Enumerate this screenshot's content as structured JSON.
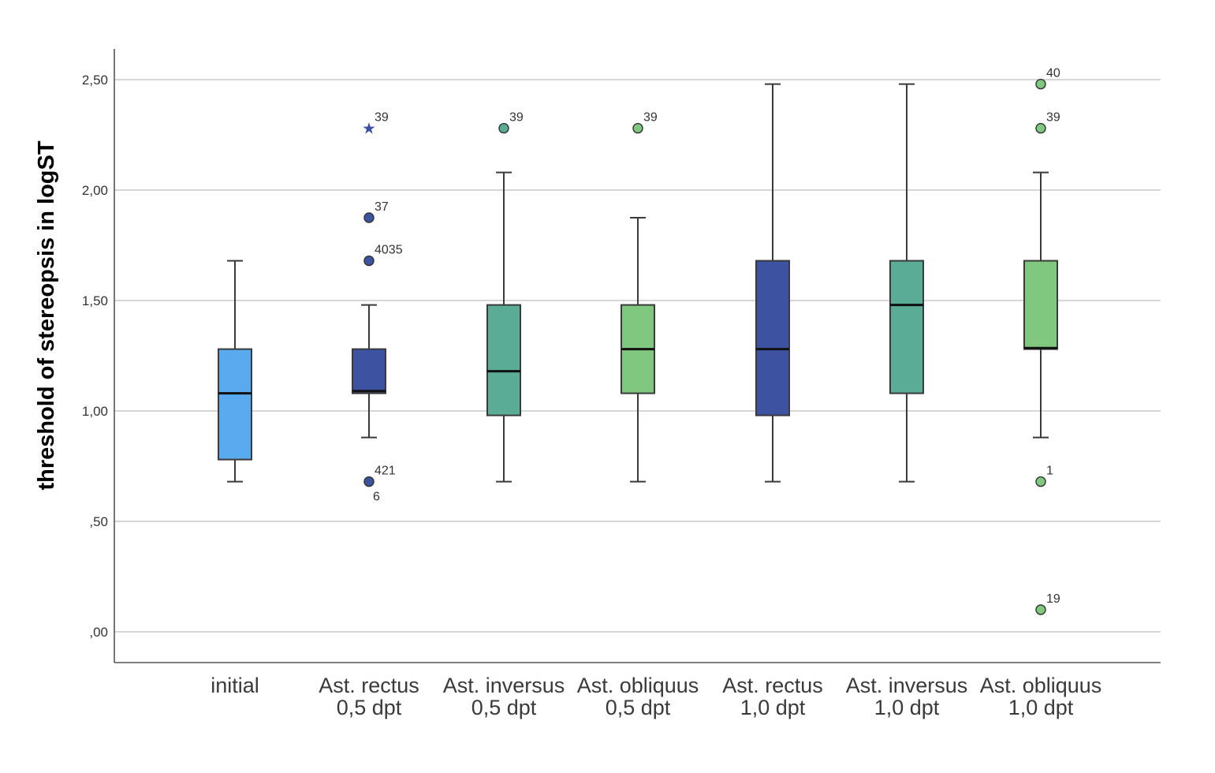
{
  "chart_data": {
    "type": "boxplot",
    "ylabel": "threshold of stereopsis in logST",
    "xlabel": "",
    "ylim": [
      -0.13,
      2.65
    ],
    "yticks": [
      0,
      0.5,
      1.0,
      1.5,
      2.0,
      2.5
    ],
    "ytick_labels": [
      ",00",
      ",50",
      "1,00",
      "1,50",
      "2,00",
      "2,50"
    ],
    "grid": true,
    "categories": [
      {
        "line1": "initial",
        "line2": ""
      },
      {
        "line1": "Ast. rectus",
        "line2": "0,5 dpt"
      },
      {
        "line1": "Ast. inversus",
        "line2": "0,5 dpt"
      },
      {
        "line1": "Ast. obliquus",
        "line2": "0,5 dpt"
      },
      {
        "line1": "Ast. rectus",
        "line2": "1,0 dpt"
      },
      {
        "line1": "Ast. inversus",
        "line2": "1,0 dpt"
      },
      {
        "line1": "Ast. obliquus",
        "line2": "1,0 dpt"
      }
    ],
    "boxes": [
      {
        "whisker_low": 0.68,
        "q1": 0.78,
        "median": 1.08,
        "q3": 1.28,
        "whisker_high": 1.68,
        "color": "#5aaaf0",
        "outliers": []
      },
      {
        "whisker_low": 0.88,
        "q1": 1.08,
        "median": 1.09,
        "q3": 1.28,
        "whisker_high": 1.48,
        "color": "#3d52a0",
        "outliers": [
          {
            "value": 2.28,
            "label": "39",
            "marker": "star",
            "glyph": "★"
          },
          {
            "value": 1.875,
            "label": "37",
            "marker": "circle"
          },
          {
            "value": 1.68,
            "label": "4035",
            "marker": "circle"
          },
          {
            "value": 0.68,
            "label": "421",
            "label_below": "6",
            "marker": "circle"
          }
        ]
      },
      {
        "whisker_low": 0.68,
        "q1": 0.98,
        "median": 1.18,
        "q3": 1.48,
        "whisker_high": 2.08,
        "color": "#5aac96",
        "outliers": [
          {
            "value": 2.28,
            "label": "39",
            "marker": "circle"
          }
        ]
      },
      {
        "whisker_low": 0.68,
        "q1": 1.08,
        "median": 1.28,
        "q3": 1.48,
        "whisker_high": 1.875,
        "color": "#80c880",
        "outliers": [
          {
            "value": 2.28,
            "label": "39",
            "marker": "circle"
          }
        ]
      },
      {
        "whisker_low": 0.68,
        "q1": 0.98,
        "median": 1.28,
        "q3": 1.68,
        "whisker_high": 2.48,
        "color": "#3d52a0",
        "outliers": []
      },
      {
        "whisker_low": 0.68,
        "q1": 1.08,
        "median": 1.48,
        "q3": 1.68,
        "whisker_high": 2.48,
        "color": "#5aac96",
        "outliers": []
      },
      {
        "whisker_low": 0.88,
        "q1": 1.28,
        "median": 1.285,
        "q3": 1.68,
        "whisker_high": 2.08,
        "color": "#80c880",
        "outliers": [
          {
            "value": 2.48,
            "label": "40",
            "marker": "circle"
          },
          {
            "value": 2.28,
            "label": "39",
            "marker": "circle"
          },
          {
            "value": 0.68,
            "label": "1",
            "marker": "circle"
          },
          {
            "value": 0.1,
            "label": "19",
            "marker": "circle"
          }
        ]
      }
    ]
  }
}
